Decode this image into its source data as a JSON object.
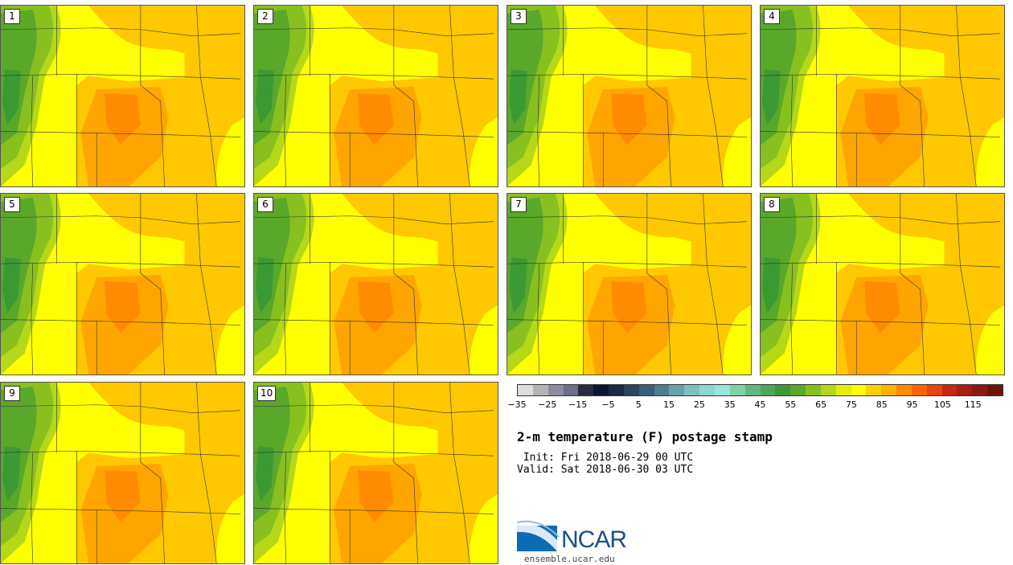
{
  "figure": {
    "title": "2-m temperature (F) postage stamp",
    "init_line": " Init: Fri 2018-06-29 00 UTC",
    "valid_line": "Valid: Sat 2018-06-30 03 UTC"
  },
  "members": [
    "1",
    "2",
    "3",
    "4",
    "5",
    "6",
    "7",
    "8",
    "9",
    "10"
  ],
  "colorbar": {
    "colors": [
      "#dcdcdc",
      "#b4b4b4",
      "#8c8ca0",
      "#6e6e86",
      "#2a2a40",
      "#0c1630",
      "#1a2a44",
      "#2a4660",
      "#3c5e78",
      "#4e7e8e",
      "#66a2a8",
      "#7cc0c0",
      "#8ed6d0",
      "#96e6dc",
      "#80d0a8",
      "#62b880",
      "#4ca858",
      "#3c9a34",
      "#5aa82a",
      "#88c020",
      "#b6d818",
      "#e6ee08",
      "#ffff00",
      "#ffd000",
      "#ffb000",
      "#ff8c00",
      "#ff6400",
      "#e84410",
      "#c82810",
      "#a81e10",
      "#8c1a10",
      "#701408"
    ],
    "ticks": [
      "−35",
      "−25",
      "−15",
      "−5",
      "5",
      "15",
      "25",
      "35",
      "45",
      "55",
      "65",
      "75",
      "85",
      "95",
      "105",
      "115"
    ]
  },
  "branding": {
    "logo_text": "NCAR",
    "site": "ensemble.ucar.edu",
    "brand_color": "#1a4f8c"
  }
}
